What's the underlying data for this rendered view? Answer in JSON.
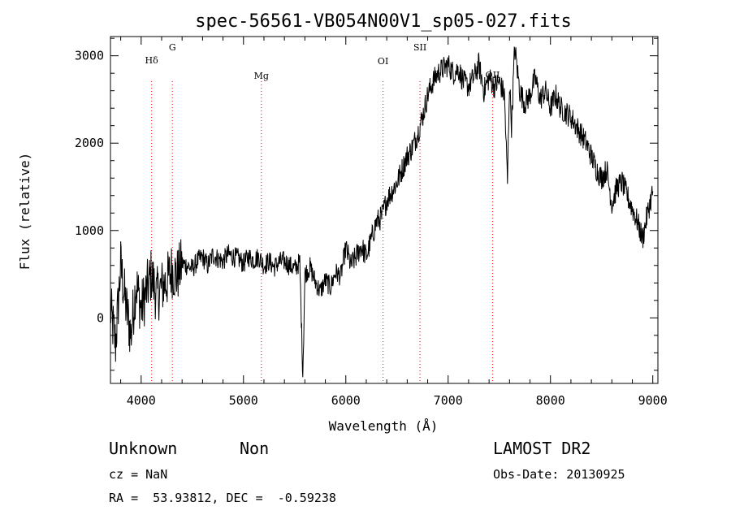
{
  "chart_data": {
    "type": "line",
    "title": "spec-56561-VB054N00V1_sp05-027.fits",
    "xlabel": "Wavelength (Å)",
    "ylabel": "Flux (relative)",
    "xlim": [
      3700,
      9050
    ],
    "ylim": [
      -750,
      3220
    ],
    "xticks": [
      4000,
      5000,
      6000,
      7000,
      8000,
      9000
    ],
    "yticks": [
      0,
      1000,
      2000,
      3000
    ],
    "grid": false,
    "line_color": "#000000",
    "marker_color": "#ff0000",
    "series": [
      {
        "x": [
          3700,
          3750,
          3800,
          3850,
          3900,
          3950,
          4000,
          4050,
          4100,
          4150,
          4200,
          4250,
          4300,
          4350,
          4400,
          4450,
          4500,
          4550,
          4600,
          4650,
          4700,
          4750,
          4800,
          4850,
          4900,
          4950,
          5000,
          5050,
          5100,
          5150,
          5200,
          5250,
          5300,
          5350,
          5400,
          5450,
          5500,
          5550,
          5580,
          5600,
          5650,
          5700,
          5750,
          5800,
          5850,
          5900,
          5950,
          6000,
          6050,
          6100,
          6150,
          6200,
          6250,
          6300,
          6350,
          6400,
          6450,
          6500,
          6550,
          6600,
          6650,
          6700,
          6750,
          6800,
          6850,
          6900,
          6950,
          7000,
          7050,
          7100,
          7150,
          7200,
          7250,
          7300,
          7350,
          7400,
          7450,
          7500,
          7550,
          7580,
          7600,
          7620,
          7650,
          7700,
          7750,
          7800,
          7850,
          7900,
          7950,
          8000,
          8050,
          8100,
          8150,
          8200,
          8250,
          8300,
          8350,
          8400,
          8450,
          8500,
          8550,
          8600,
          8650,
          8700,
          8750,
          8800,
          8850,
          8900,
          8950,
          9000
        ],
        "y": [
          100,
          -300,
          600,
          150,
          -200,
          400,
          100,
          300,
          500,
          250,
          350,
          420,
          550,
          480,
          620,
          600,
          560,
          650,
          700,
          600,
          720,
          680,
          650,
          730,
          700,
          680,
          620,
          700,
          660,
          700,
          600,
          650,
          580,
          640,
          650,
          600,
          560,
          640,
          -650,
          500,
          580,
          420,
          300,
          430,
          350,
          520,
          480,
          800,
          600,
          700,
          820,
          700,
          900,
          1100,
          1150,
          1350,
          1450,
          1550,
          1700,
          1850,
          1950,
          2100,
          2300,
          2550,
          2700,
          2800,
          2850,
          2900,
          2800,
          2850,
          2700,
          2650,
          2750,
          2900,
          2600,
          2750,
          2650,
          2700,
          2550,
          1550,
          2700,
          2200,
          3100,
          2600,
          2450,
          2550,
          2750,
          2500,
          2600,
          2400,
          2550,
          2400,
          2350,
          2300,
          2200,
          2100,
          2000,
          1850,
          1700,
          1600,
          1700,
          1300,
          1500,
          1550,
          1400,
          1250,
          1100,
          900,
          1200,
          1450
        ]
      }
    ],
    "line_markers": [
      {
        "label": "Hδ",
        "x": 4102
      },
      {
        "label": "G",
        "x": 4305
      },
      {
        "label": "Mg",
        "x": 5175
      },
      {
        "label": "OI",
        "x": 6364
      },
      {
        "label": "SII",
        "x": 6725
      },
      {
        "label": "OII",
        "x": 7435
      }
    ]
  },
  "info": {
    "class": "Unknown",
    "subclass": "Non",
    "survey": "LAMOST DR2",
    "cz": "cz = NaN",
    "obs_date": "Obs-Date: 20130925",
    "coords": "RA =  53.93812, DEC =  -0.59238"
  }
}
